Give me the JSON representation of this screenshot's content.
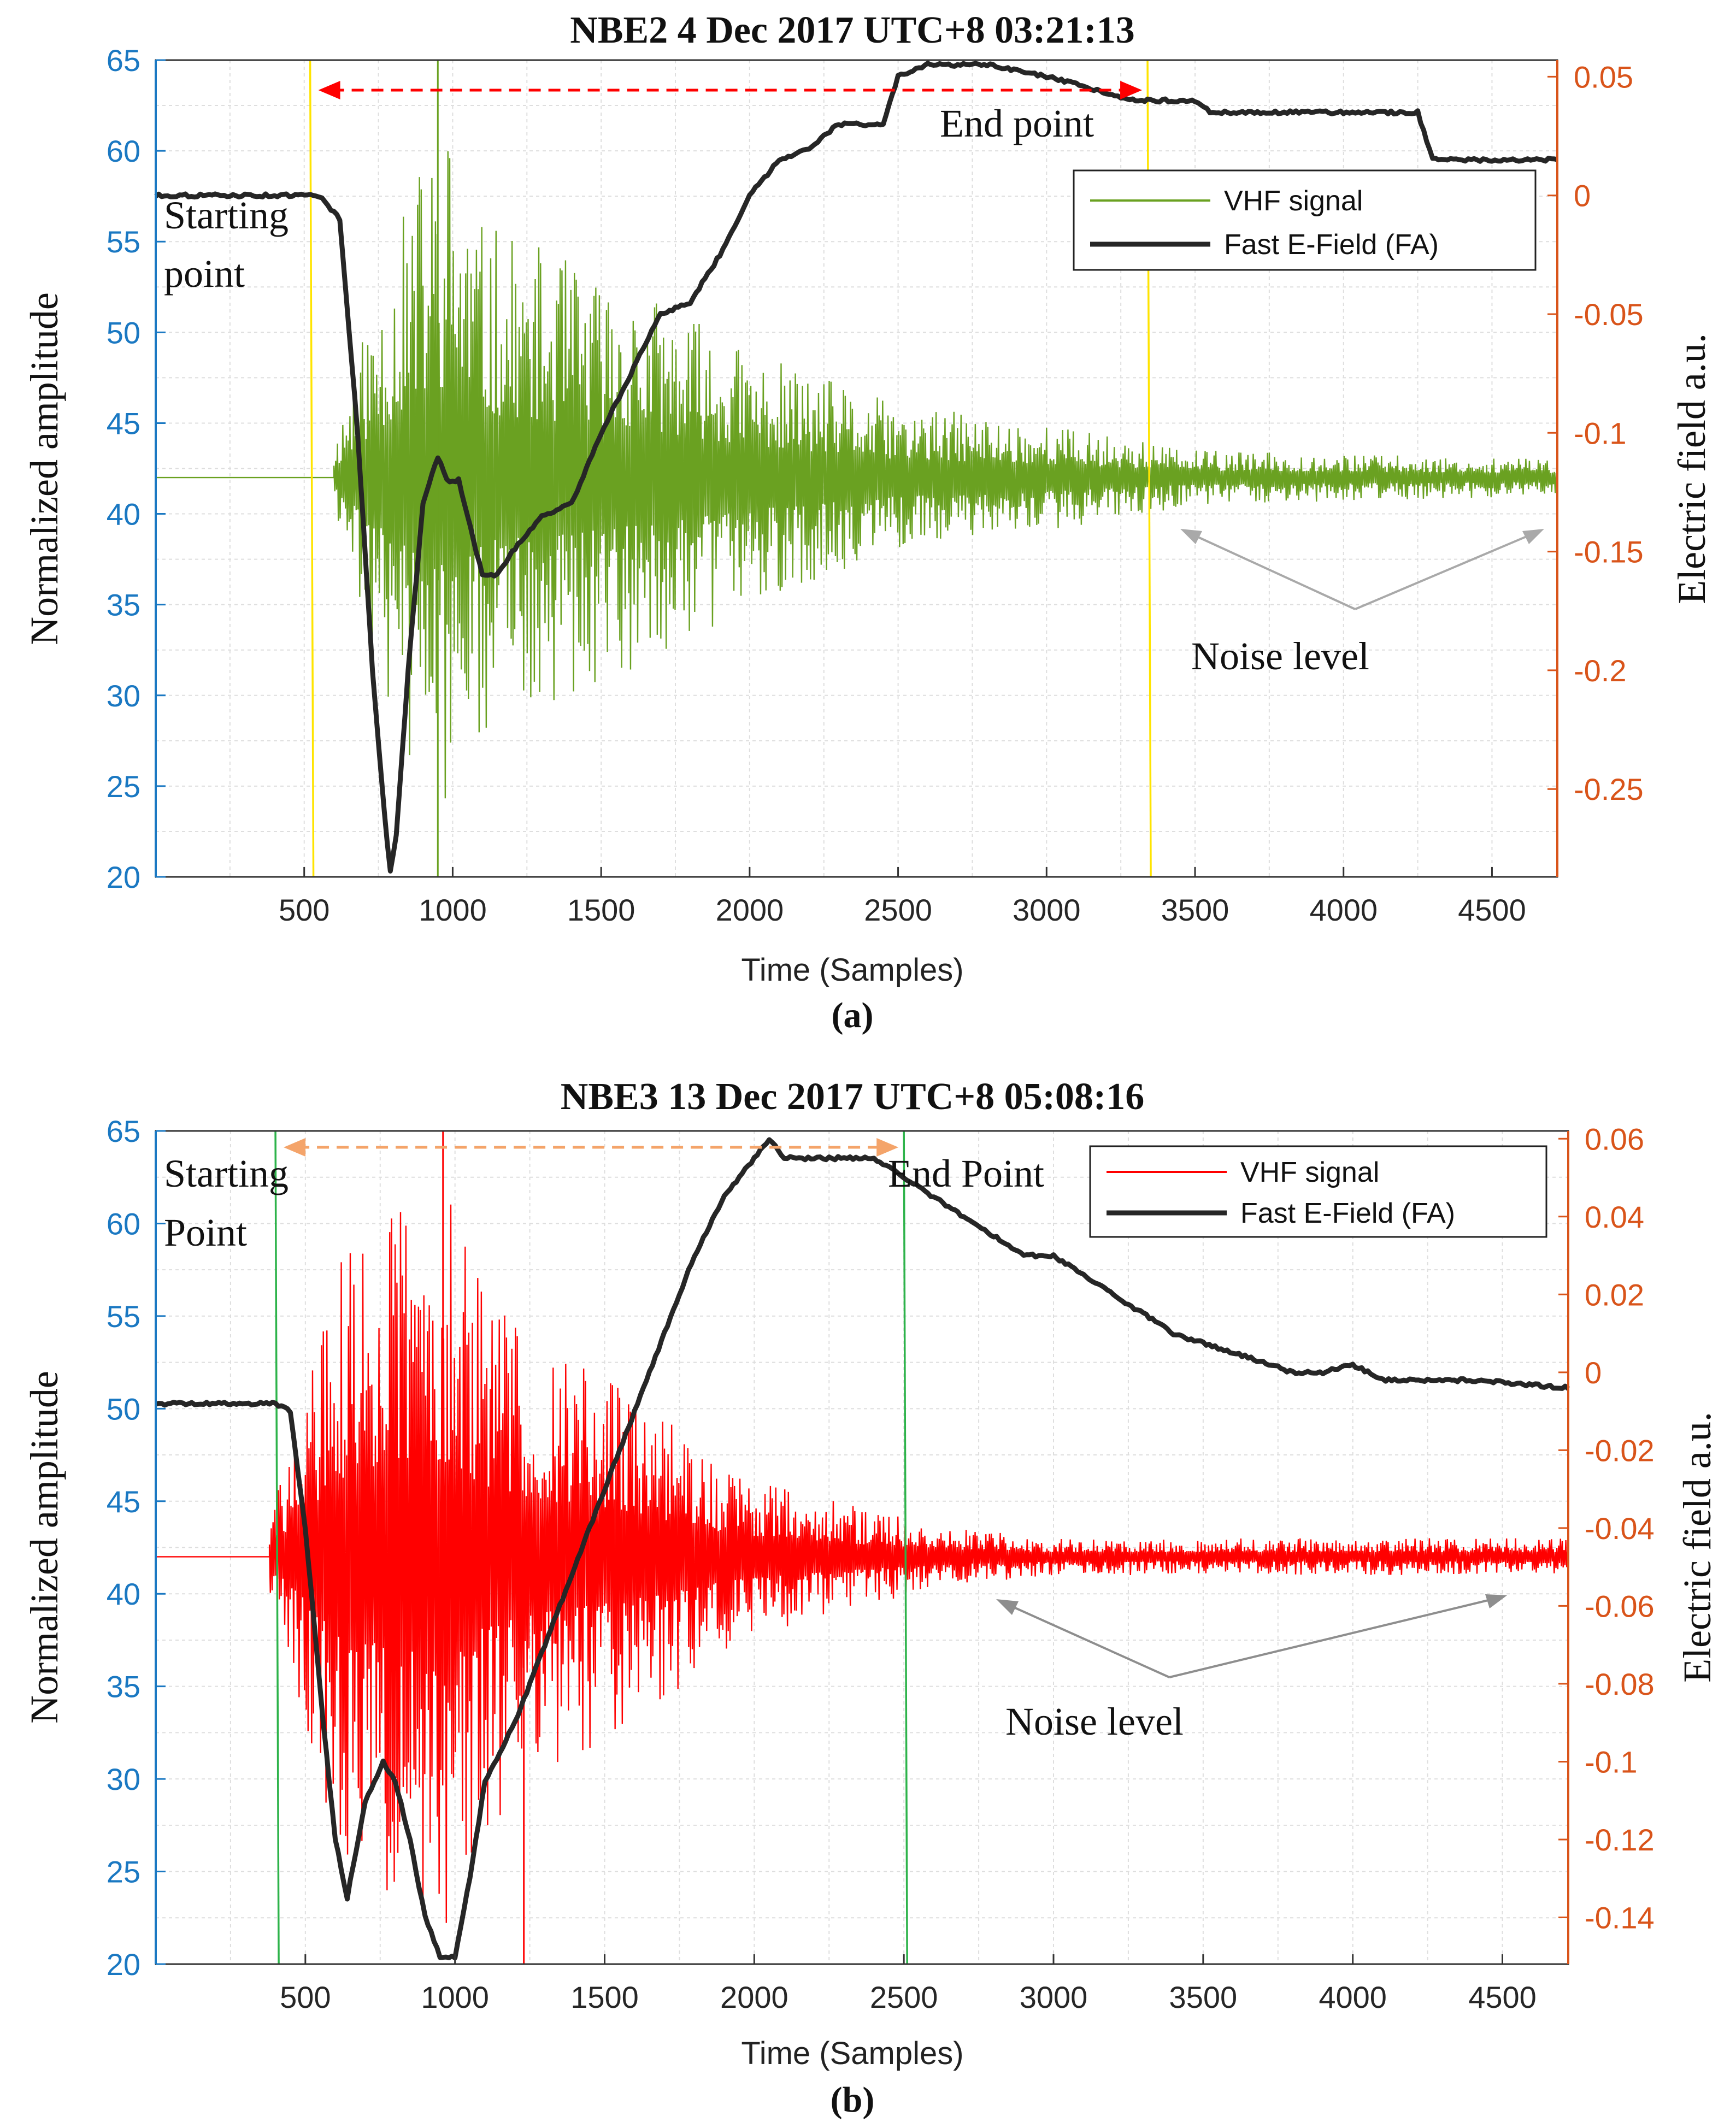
{
  "figure": {
    "colors": {
      "axis_left": "#1a78c2",
      "axis_right": "#d9541a",
      "fast_efield": "#262626",
      "vhf_a": "#6aa121",
      "vhf_b": "#ff0000",
      "marker_a": "#ffe400",
      "marker_b": "#2db34a",
      "arrow_a": "#ff0000",
      "arrow_b": "#f4a46a",
      "noise_arrow": "#a9a9a9"
    }
  },
  "chart_data": [
    {
      "type": "line",
      "panel_label": "(a)",
      "title": "NBE2  4 Dec 2017 UTC+8  03:21:13",
      "xlabel": "Time (Samples)",
      "ylabel": "Normalized amplitude",
      "y2label": "Electric field a.u.",
      "xlim": [
        0,
        4720
      ],
      "ylim": [
        20,
        65
      ],
      "y2lim": [
        -0.287,
        0.057
      ],
      "xticks": [
        500,
        1000,
        1500,
        2000,
        2500,
        3000,
        3500,
        4000,
        4500
      ],
      "yticks": [
        20,
        25,
        30,
        35,
        40,
        45,
        50,
        55,
        60,
        65
      ],
      "y2ticks": [
        -0.25,
        -0.2,
        -0.15,
        -0.1,
        -0.05,
        0,
        0.05
      ],
      "y2ticklabels": [
        "-0.25",
        "-0.2",
        "-0.15",
        "-0.1",
        "-0.05",
        "0",
        "0.05"
      ],
      "grid": true,
      "legend_position": "upper-right",
      "legend": [
        "VHF signal",
        "Fast E-Field (FA)"
      ],
      "series": [
        {
          "name": "Fast E-Field (FA)",
          "axis": "right",
          "x": [
            0,
            300,
            550,
            620,
            680,
            730,
            770,
            790,
            810,
            850,
            900,
            950,
            980,
            1020,
            1060,
            1100,
            1150,
            1200,
            1300,
            1400,
            1500,
            1600,
            1700,
            1800,
            1900,
            2000,
            2100,
            2200,
            2300,
            2400,
            2450,
            2500,
            2600,
            2800,
            3000,
            3300,
            3400,
            3500,
            3550,
            4000,
            4250,
            4300,
            4500,
            4720
          ],
          "values": [
            0.0,
            0.0,
            0.0,
            -0.01,
            -0.1,
            -0.2,
            -0.26,
            -0.285,
            -0.27,
            -0.2,
            -0.13,
            -0.11,
            -0.12,
            -0.12,
            -0.14,
            -0.16,
            -0.16,
            -0.15,
            -0.135,
            -0.13,
            -0.1,
            -0.075,
            -0.05,
            -0.045,
            -0.025,
            0.0,
            0.015,
            0.02,
            0.03,
            0.03,
            0.03,
            0.05,
            0.055,
            0.055,
            0.05,
            0.04,
            0.04,
            0.04,
            0.035,
            0.035,
            0.035,
            0.015,
            0.015,
            0.015
          ]
        },
        {
          "name": "VHF signal",
          "axis": "left",
          "baseline": 42,
          "onset": 600,
          "x": [
            600,
            700,
            900,
            1000,
            1100,
            1400,
            1700,
            2000,
            2500,
            3000,
            3500,
            4720
          ],
          "envelope": [
            2,
            8,
            18,
            20,
            14,
            12,
            10,
            7,
            4,
            3,
            1.5,
            1
          ]
        }
      ],
      "annotations": {
        "start_label": "Starting point",
        "start_x": 520,
        "end_label": "End point",
        "end_x": 3340,
        "noise_label": "Noise  level"
      }
    },
    {
      "type": "line",
      "panel_label": "(b)",
      "title": "NBE3 13 Dec 2017 UTC+8  05:08:16",
      "xlabel": "Time (Samples)",
      "ylabel": "Normalized amplitude",
      "y2label": "Electric field a.u.",
      "xlim": [
        0,
        4720
      ],
      "ylim": [
        20,
        65
      ],
      "y2lim": [
        -0.152,
        0.062
      ],
      "xticks": [
        500,
        1000,
        1500,
        2000,
        2500,
        3000,
        3500,
        4000,
        4500
      ],
      "yticks": [
        20,
        25,
        30,
        35,
        40,
        45,
        50,
        55,
        60,
        65
      ],
      "y2ticks": [
        -0.14,
        -0.12,
        -0.1,
        -0.08,
        -0.06,
        -0.04,
        -0.02,
        0,
        0.02,
        0.04,
        0.06
      ],
      "y2ticklabels": [
        "-0.14",
        "-0.12",
        "-0.1",
        "-0.08",
        "-0.06",
        "-0.04",
        "-0.02",
        "0",
        "0.02",
        "0.04",
        "0.06"
      ],
      "grid": true,
      "legend_position": "upper-right",
      "legend": [
        "VHF signal",
        "Fast E-Field (FA)"
      ],
      "series": [
        {
          "name": "Fast E-Field (FA)",
          "axis": "right",
          "x": [
            0,
            300,
            400,
            450,
            500,
            560,
            600,
            640,
            700,
            760,
            800,
            850,
            900,
            950,
            1000,
            1050,
            1100,
            1200,
            1300,
            1400,
            1500,
            1600,
            1700,
            1800,
            1900,
            2000,
            2050,
            2100,
            2200,
            2300,
            2400,
            2500,
            2700,
            2900,
            3000,
            3200,
            3400,
            3600,
            3800,
            3900,
            4000,
            4100,
            4400,
            4720
          ],
          "values": [
            -0.008,
            -0.008,
            -0.008,
            -0.01,
            -0.04,
            -0.09,
            -0.12,
            -0.135,
            -0.11,
            -0.1,
            -0.105,
            -0.12,
            -0.14,
            -0.15,
            -0.15,
            -0.13,
            -0.105,
            -0.09,
            -0.07,
            -0.05,
            -0.03,
            -0.01,
            0.01,
            0.03,
            0.045,
            0.055,
            0.06,
            0.055,
            0.055,
            0.055,
            0.055,
            0.05,
            0.04,
            0.03,
            0.03,
            0.02,
            0.01,
            0.005,
            0.0,
            0.0,
            0.002,
            -0.002,
            -0.002,
            -0.004
          ]
        },
        {
          "name": "VHF signal",
          "axis": "left",
          "baseline": 42,
          "onset": 380,
          "x": [
            380,
            480,
            600,
            800,
            950,
            1100,
            1300,
            1500,
            1700,
            1900,
            2100,
            2400,
            2700,
            3000,
            4720
          ],
          "envelope": [
            2,
            8,
            16,
            20,
            21,
            15,
            12,
            10,
            8,
            5,
            4,
            2.5,
            1.5,
            1,
            1
          ]
        }
      ],
      "annotations": {
        "start_label": "Starting Point",
        "start_x": 400,
        "end_label": "End Point",
        "end_x": 2500,
        "noise_label": "Noise  level"
      }
    }
  ]
}
